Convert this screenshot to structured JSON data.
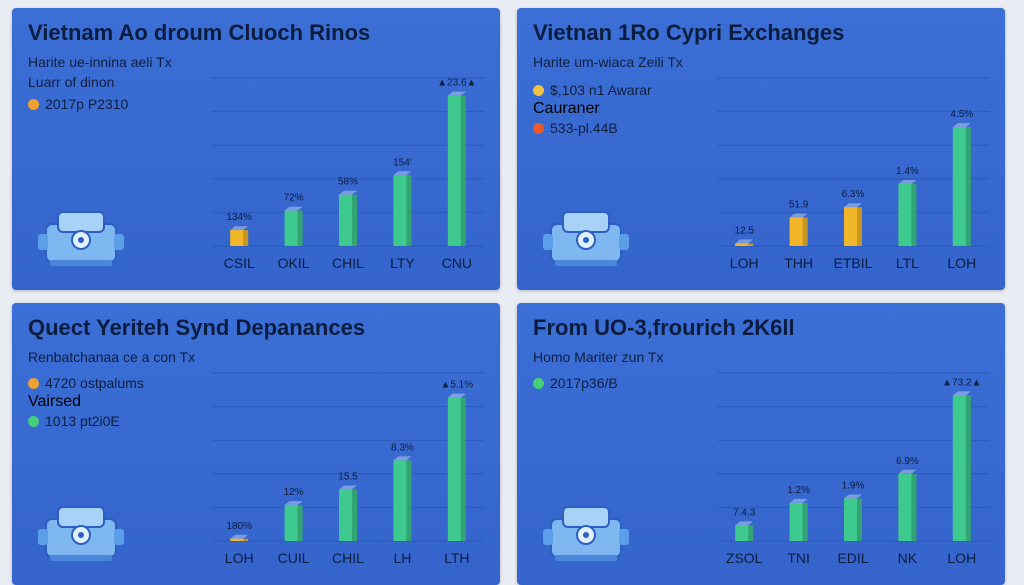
{
  "colors": {
    "panel_bg": "#3b6fd6",
    "bar_green": "#3ec98e",
    "bar_yellow": "#f2b728",
    "dot_orange": "#f0a030",
    "dot_red": "#ee5a2a",
    "dot_green": "#46cf7a",
    "gridline": "#2a56b6"
  },
  "panels": [
    {
      "title": "Vietnam Ao droum Cluoch Rinos",
      "subtitle": "Harite ue-innina aeli Tx",
      "legend_text": "Luarr of dinon",
      "legend": [
        {
          "label": "2017p P2310",
          "sub": "",
          "color": "#f0a030"
        }
      ]
    },
    {
      "title": "Vietnan 1Ro Cypri Exchanges",
      "subtitle": "Harite um-wiaca Zeili Tx",
      "legend_text": "",
      "legend": [
        {
          "label": "$,103 n1 Awarar",
          "sub": "Cauraner",
          "color": "#f0c040"
        },
        {
          "label": "533-pl.44B",
          "sub": "",
          "color": "#ee5a2a"
        }
      ]
    },
    {
      "title": "Quect Yeriteh Synd Depanances",
      "subtitle": "Renbatchanaa ce a con Tx",
      "legend_text": "",
      "legend": [
        {
          "label": "4720 ostpalums",
          "sub": "Vairsed",
          "color": "#f0a030"
        },
        {
          "label": "1013 pt2i0E",
          "sub": "",
          "color": "#46cf7a"
        }
      ]
    },
    {
      "title": "From UO-3,frourich 2K6ll",
      "subtitle": "Homo Mariter zun Tx",
      "legend_text": "",
      "legend": [
        {
          "label": "2017p36/B",
          "sub": "",
          "color": "#46cf7a"
        }
      ]
    }
  ],
  "chart_data": [
    {
      "type": "bar",
      "categories": [
        "CSIL",
        "OKIL",
        "CHIL",
        "LTY",
        "CNU"
      ],
      "values": [
        18,
        40,
        58,
        80,
        170
      ],
      "colors": [
        "#f2b728",
        "#3ec98e",
        "#3ec98e",
        "#3ec98e",
        "#3ec98e"
      ],
      "data_labels": [
        "134%",
        "72%",
        "58%",
        "154'",
        "▲23.6▲"
      ],
      "ylim": [
        0,
        190
      ],
      "grid": true
    },
    {
      "type": "bar",
      "categories": [
        "LOH",
        "THH",
        "ETBIL",
        "LTL",
        "LOH"
      ],
      "values": [
        2,
        22,
        30,
        48,
        92
      ],
      "colors": [
        "#f2b728",
        "#f2b728",
        "#f2b728",
        "#3ec98e",
        "#3ec98e"
      ],
      "data_labels": [
        "12.5",
        "51.9",
        "6.3%",
        "1.4%",
        "4.5%"
      ],
      "ylim": [
        0,
        130
      ],
      "grid": true
    },
    {
      "type": "bar",
      "categories": [
        "LOH",
        "CUIL",
        "CHIL",
        "LH",
        "LTH"
      ],
      "values": [
        2,
        32,
        46,
        72,
        128
      ],
      "colors": [
        "#f2b728",
        "#3ec98e",
        "#3ec98e",
        "#3ec98e",
        "#3ec98e"
      ],
      "data_labels": [
        "180%",
        "12%",
        "15.5",
        "8.3%",
        "▲5.1%"
      ],
      "ylim": [
        0,
        150
      ],
      "grid": true
    },
    {
      "type": "bar",
      "categories": [
        "ZSOL",
        "TNI",
        "EDIL",
        "NK",
        "LOH"
      ],
      "values": [
        14,
        34,
        38,
        60,
        130
      ],
      "colors": [
        "#3ec98e",
        "#3ec98e",
        "#3ec98e",
        "#3ec98e",
        "#3ec98e"
      ],
      "data_labels": [
        "7.4.3",
        "1.2%",
        "1.9%",
        "6.9%",
        "▲73.2▲"
      ],
      "ylim": [
        0,
        150
      ],
      "grid": true
    }
  ]
}
